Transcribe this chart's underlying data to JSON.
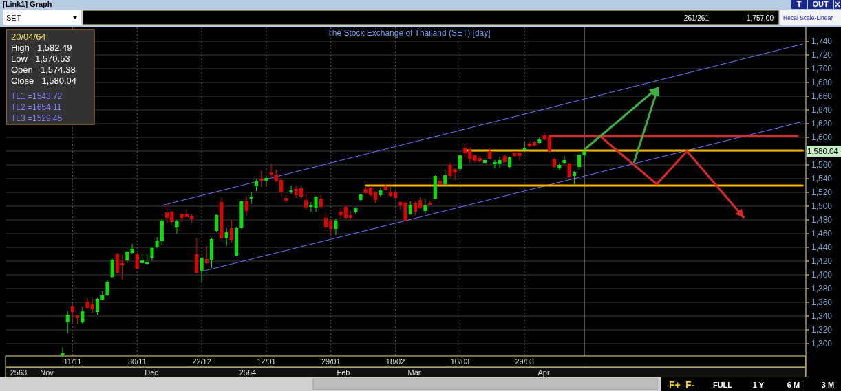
{
  "chart_data": {
    "type": "candlestick",
    "title": "The Stock Exchange of Thailand (SET) [day]",
    "categories": [
      null,
      null,
      null,
      null,
      null,
      null,
      null,
      null,
      null,
      null,
      null,
      null,
      null,
      "11/11",
      null,
      null,
      null,
      null,
      null,
      null,
      null,
      null,
      null,
      null,
      null,
      null,
      "30/11",
      null,
      null,
      null,
      null,
      null,
      null,
      null,
      null,
      null,
      null,
      null,
      null,
      "22/12",
      null,
      null,
      null,
      null,
      null,
      null,
      null,
      null,
      null,
      null,
      null,
      null,
      "12/01",
      null,
      null,
      null,
      null,
      null,
      null,
      null,
      null,
      null,
      null,
      null,
      null,
      "29/01",
      null,
      null,
      null,
      null,
      null,
      null,
      null,
      null,
      null,
      null,
      null,
      null,
      "18/02",
      null,
      null,
      null,
      null,
      null,
      null,
      null,
      null,
      null,
      null,
      null,
      null,
      "10/03",
      null,
      null,
      null,
      null,
      null,
      null,
      null,
      null,
      null,
      null,
      null,
      null,
      "29/03",
      null,
      null,
      null,
      null,
      null,
      null,
      null,
      null,
      null,
      null,
      null,
      null,
      null,
      null,
      null,
      null,
      null,
      null,
      null,
      null,
      null,
      null,
      null,
      null,
      null,
      null,
      null,
      null,
      null,
      null,
      null,
      null,
      null,
      null,
      null,
      null,
      null,
      null,
      null,
      null,
      null,
      null,
      null,
      null,
      null,
      null,
      null,
      null,
      null,
      null,
      null,
      null,
      null,
      null,
      null,
      null
    ],
    "ohlc": [
      null,
      null,
      null,
      null,
      null,
      null,
      null,
      null,
      null,
      null,
      null,
      [
        1283,
        1294,
        1282,
        1286
      ],
      [
        1331,
        1347,
        1315,
        1342
      ],
      [
        1354,
        1357,
        1332,
        1346
      ],
      [
        1341,
        1342,
        1328,
        1337
      ],
      [
        1331,
        1353,
        1328,
        1347
      ],
      [
        1361,
        1366,
        1351,
        1352
      ],
      [
        1357,
        1365,
        1345,
        1350
      ],
      [
        1346,
        1367,
        1342,
        1365
      ],
      [
        1364,
        1376,
        1363,
        1370
      ],
      [
        1370,
        1392,
        1369,
        1390
      ],
      [
        1397,
        1423,
        1396,
        1422
      ],
      [
        1430,
        1432,
        1402,
        1403
      ],
      [
        1417,
        1429,
        1393,
        1414
      ],
      [
        1421,
        1435,
        1417,
        1434
      ],
      [
        1432,
        1445,
        1430,
        1438
      ],
      [
        1430,
        1432,
        1408,
        1409
      ],
      [
        1417,
        1431,
        1416,
        1421
      ],
      [
        1416,
        1431,
        1415,
        1418
      ],
      [
        1425,
        1440,
        1421,
        1439
      ],
      [
        1440,
        1455,
        1439,
        1450
      ],
      [
        1449,
        1482,
        1443,
        1479
      ],
      [
        1491,
        1503,
        1475,
        1483
      ],
      [
        1492,
        1493,
        1473,
        1477
      ],
      [
        1469,
        1480,
        1460,
        1478
      ],
      [
        1488,
        1490,
        1477,
        1483
      ],
      [
        1488,
        1496,
        1484,
        1484
      ],
      [
        1486,
        1488,
        1476,
        1481
      ],
      [
        1430,
        1454,
        1402,
        1403
      ],
      [
        1406,
        1426,
        1389,
        1425
      ],
      [
        1423,
        1442,
        1416,
        1417
      ],
      [
        1421,
        1454,
        1410,
        1452
      ],
      [
        1464,
        1488,
        1462,
        1487
      ],
      [
        1506,
        1513,
        1452,
        1453
      ],
      [
        1453,
        1468,
        1442,
        1462
      ],
      [
        1468,
        1480,
        1447,
        1451
      ],
      [
        1428,
        1470,
        1427,
        1468
      ],
      [
        1468,
        1508,
        1467,
        1507
      ],
      [
        1507,
        1515,
        1486,
        1493
      ],
      [
        1511,
        1520,
        1503,
        1514
      ],
      [
        1529,
        1539,
        1522,
        1537
      ],
      [
        1540,
        1551,
        1528,
        1537
      ],
      [
        1537,
        1543,
        1529,
        1541
      ],
      [
        1549,
        1562,
        1543,
        1546
      ],
      [
        1546,
        1553,
        1535,
        1537
      ],
      [
        1538,
        1541,
        1514,
        1520
      ],
      [
        1512,
        1516,
        1504,
        1508
      ],
      [
        1520,
        1530,
        1518,
        1523
      ],
      [
        1525,
        1530,
        1512,
        1516
      ],
      [
        1526,
        1530,
        1511,
        1514
      ],
      [
        1509,
        1519,
        1495,
        1498
      ],
      [
        1499,
        1506,
        1492,
        1502
      ],
      [
        1498,
        1515,
        1492,
        1513
      ],
      [
        1511,
        1516,
        1498,
        1499
      ],
      [
        1483,
        1492,
        1467,
        1469
      ],
      [
        1479,
        1481,
        1456,
        1467
      ],
      [
        1467,
        1482,
        1458,
        1479
      ],
      [
        1492,
        1497,
        1481,
        1487
      ],
      [
        1499,
        1501,
        1482,
        1483
      ],
      [
        1487,
        1493,
        1479,
        1483
      ],
      [
        1492,
        1499,
        1489,
        1497
      ],
      [
        1509,
        1518,
        1508,
        1517
      ],
      [
        1525,
        1530,
        1517,
        1519
      ],
      [
        1527,
        1530,
        1514,
        1516
      ],
      [
        1521,
        1522,
        1504,
        1509
      ],
      [
        1516,
        1527,
        1514,
        1523
      ],
      [
        1528,
        1532,
        1523,
        1523
      ],
      [
        1520,
        1528,
        1514,
        1515
      ],
      [
        1520,
        1525,
        1511,
        1512
      ],
      [
        1506,
        1507,
        1494,
        1501
      ],
      [
        1505,
        1507,
        1478,
        1479
      ],
      [
        1488,
        1507,
        1487,
        1502
      ],
      [
        1504,
        1507,
        1486,
        1492
      ],
      [
        1509,
        1513,
        1496,
        1497
      ],
      [
        1493,
        1511,
        1488,
        1501
      ],
      [
        1504,
        1508,
        1501,
        1502
      ],
      [
        1511,
        1545,
        1510,
        1544
      ],
      [
        1537,
        1541,
        1530,
        1532
      ],
      [
        1532,
        1554,
        1531,
        1545
      ],
      [
        1560,
        1563,
        1541,
        1544
      ],
      [
        1554,
        1555,
        1538,
        1549
      ],
      [
        1554,
        1575,
        1551,
        1574
      ],
      [
        1585,
        1590,
        1571,
        1577
      ],
      [
        1581,
        1586,
        1563,
        1568
      ],
      [
        1574,
        1575,
        1564,
        1566
      ],
      [
        1570,
        1573,
        1563,
        1565
      ],
      [
        1563,
        1570,
        1560,
        1567
      ],
      [
        1580,
        1584,
        1568,
        1569
      ],
      [
        1561,
        1567,
        1555,
        1564
      ],
      [
        1562,
        1572,
        1556,
        1567
      ],
      [
        1573,
        1575,
        1563,
        1564
      ],
      [
        1557,
        1572,
        1556,
        1571
      ],
      [
        1577,
        1580,
        1572,
        1573
      ],
      [
        1578,
        1578,
        1567,
        1573
      ],
      [
        1582,
        1593,
        1581,
        1584
      ],
      [
        1591,
        1593,
        1586,
        1587
      ],
      [
        1593,
        1595,
        1587,
        1588
      ],
      [
        1592,
        1600,
        1591,
        1597
      ],
      [
        1603,
        1607,
        1596,
        1597
      ],
      [
        1600,
        1601,
        1577,
        1580
      ],
      [
        1568,
        1570,
        1556,
        1557
      ],
      [
        1555,
        1562,
        1553,
        1560
      ],
      [
        1563,
        1573,
        1562,
        1567
      ],
      [
        1562,
        1563,
        1541,
        1542
      ],
      [
        1544,
        1551,
        1530,
        1549
      ],
      [
        1557,
        1575,
        1553,
        1575
      ],
      [
        1574.38,
        1582.49,
        1570.53,
        1580.04
      ],
      null,
      null,
      null,
      null,
      null,
      null,
      null,
      null,
      null,
      null,
      null,
      null,
      null,
      null,
      null,
      null,
      null,
      null,
      null,
      null,
      null,
      null,
      null,
      null,
      null,
      null,
      null,
      null,
      null,
      null,
      null,
      null,
      null,
      null,
      null,
      null,
      null,
      null,
      null,
      null,
      null,
      null,
      null,
      null
    ],
    "series": [
      {
        "type": "line",
        "color": "#7070ff",
        "values": [
          null,
          null,
          null,
          null,
          null,
          null,
          null,
          null,
          null,
          null,
          null,
          null,
          null,
          null,
          null,
          null,
          null,
          null,
          null,
          null,
          null,
          null,
          null,
          null,
          null,
          null,
          null,
          null,
          null,
          null,
          null,
          1501,
          null,
          null,
          null,
          null,
          null,
          null,
          null,
          null,
          null,
          null,
          null,
          null,
          null,
          null,
          null,
          null,
          null,
          null,
          null,
          null,
          null,
          null,
          null,
          null,
          null,
          null,
          null,
          null,
          null,
          null,
          null,
          null,
          null,
          null,
          null,
          null,
          null,
          null,
          null,
          null,
          null,
          null,
          null,
          null,
          null,
          null,
          null,
          null,
          null,
          null,
          null,
          null,
          null,
          null,
          null,
          null,
          null,
          null,
          null,
          null,
          null,
          null,
          null,
          null,
          null,
          null,
          null,
          null,
          null,
          null,
          null,
          null,
          null,
          null,
          null,
          null,
          null,
          null,
          null,
          null,
          null,
          null,
          null,
          null,
          null,
          null,
          null,
          null,
          null,
          null,
          null,
          null,
          null,
          null,
          null,
          null,
          null,
          null,
          null,
          null,
          null,
          null,
          null,
          null,
          null,
          null,
          null,
          null,
          null,
          null,
          null,
          null,
          null,
          null,
          null,
          null,
          null,
          null,
          null,
          null,
          null,
          null,
          null,
          null,
          null,
          null,
          null,
          null,
          1736
        ]
      },
      {
        "type": "line",
        "color": "#7070ff",
        "values": [
          null,
          null,
          null,
          null,
          null,
          null,
          null,
          null,
          null,
          null,
          null,
          null,
          null,
          null,
          null,
          null,
          null,
          null,
          null,
          null,
          null,
          null,
          null,
          null,
          null,
          null,
          null,
          null,
          null,
          null,
          null,
          null,
          null,
          null,
          null,
          null,
          null,
          null,
          null,
          1405,
          null,
          null,
          null,
          null,
          null,
          null,
          null,
          null,
          null,
          null,
          null,
          null,
          null,
          null,
          null,
          null,
          null,
          null,
          null,
          null,
          null,
          null,
          null,
          null,
          null,
          null,
          null,
          null,
          null,
          null,
          null,
          null,
          null,
          null,
          null,
          null,
          null,
          null,
          null,
          null,
          null,
          null,
          null,
          null,
          null,
          null,
          null,
          null,
          null,
          null,
          null,
          null,
          null,
          null,
          null,
          null,
          null,
          null,
          null,
          null,
          null,
          null,
          null,
          null,
          null,
          null,
          null,
          null,
          null,
          null,
          null,
          null,
          null,
          null,
          null,
          null,
          null,
          null,
          null,
          null,
          null,
          null,
          null,
          null,
          null,
          null,
          null,
          null,
          null,
          null,
          null,
          null,
          null,
          null,
          null,
          null,
          null,
          null,
          null,
          null,
          null,
          null,
          null,
          null,
          null,
          null,
          null,
          null,
          null,
          null,
          null,
          null,
          null,
          null,
          null,
          null,
          null,
          null,
          null,
          null,
          1623
        ]
      },
      {
        "type": "line",
        "color": "#f5b400",
        "values": [
          null,
          null,
          null,
          null,
          null,
          null,
          null,
          null,
          null,
          null,
          null,
          null,
          null,
          null,
          null,
          null,
          null,
          null,
          null,
          null,
          null,
          null,
          null,
          null,
          null,
          null,
          null,
          null,
          null,
          null,
          null,
          null,
          null,
          null,
          null,
          null,
          null,
          null,
          null,
          null,
          null,
          null,
          null,
          null,
          null,
          null,
          null,
          null,
          null,
          null,
          null,
          null,
          null,
          null,
          null,
          null,
          null,
          null,
          null,
          null,
          null,
          null,
          null,
          null,
          null,
          null,
          null,
          null,
          null,
          null,
          null,
          null,
          null,
          null,
          null,
          null,
          null,
          null,
          null,
          null,
          null,
          null,
          null,
          null,
          null,
          null,
          null,
          null,
          null,
          null,
          null,
          null,
          1581,
          null,
          null,
          null,
          null,
          null,
          null,
          null,
          null,
          null,
          null,
          null,
          null,
          null,
          null,
          null,
          null,
          null,
          null,
          null,
          null,
          null,
          null,
          null,
          null,
          null,
          null,
          null,
          null,
          null,
          null,
          null,
          null,
          null,
          null,
          null,
          null,
          null,
          null,
          null,
          null,
          null,
          null,
          null,
          null,
          null,
          null,
          null,
          null,
          null,
          null,
          null,
          null,
          null,
          null,
          null,
          null,
          null,
          null,
          null,
          null,
          null,
          null,
          null,
          null,
          null,
          null,
          null,
          1581
        ]
      },
      {
        "type": "line",
        "color": "#f5b400",
        "values": [
          null,
          null,
          null,
          null,
          null,
          null,
          null,
          null,
          null,
          null,
          null,
          null,
          null,
          null,
          null,
          null,
          null,
          null,
          null,
          null,
          null,
          null,
          null,
          null,
          null,
          null,
          null,
          null,
          null,
          null,
          null,
          null,
          null,
          null,
          null,
          null,
          null,
          null,
          null,
          null,
          null,
          null,
          null,
          null,
          null,
          null,
          null,
          null,
          null,
          null,
          null,
          null,
          null,
          null,
          null,
          null,
          null,
          null,
          null,
          null,
          null,
          null,
          null,
          null,
          null,
          null,
          null,
          null,
          null,
          null,
          null,
          null,
          1530,
          null,
          null,
          null,
          null,
          null,
          null,
          null,
          null,
          null,
          null,
          null,
          null,
          null,
          null,
          null,
          null,
          null,
          null,
          null,
          null,
          null,
          null,
          null,
          null,
          null,
          null,
          null,
          null,
          null,
          null,
          null,
          null,
          null,
          null,
          null,
          null,
          null,
          null,
          null,
          null,
          null,
          null,
          null,
          null,
          null,
          null,
          null,
          null,
          null,
          null,
          null,
          null,
          null,
          null,
          null,
          null,
          null,
          null,
          null,
          null,
          null,
          null,
          null,
          null,
          null,
          null,
          null,
          null,
          null,
          null,
          null,
          null,
          null,
          null,
          null,
          null,
          null,
          null,
          null,
          null,
          null,
          null,
          null,
          null,
          null,
          null,
          null,
          1530
        ]
      },
      {
        "type": "line",
        "color": "#e02828",
        "values": [
          null,
          null,
          null,
          null,
          null,
          null,
          null,
          null,
          null,
          null,
          null,
          null,
          null,
          null,
          null,
          null,
          null,
          null,
          null,
          null,
          null,
          null,
          null,
          null,
          null,
          null,
          null,
          null,
          null,
          null,
          null,
          null,
          null,
          null,
          null,
          null,
          null,
          null,
          null,
          null,
          null,
          null,
          null,
          null,
          null,
          null,
          null,
          null,
          null,
          null,
          null,
          null,
          null,
          null,
          null,
          null,
          null,
          null,
          null,
          null,
          null,
          null,
          null,
          null,
          null,
          null,
          null,
          null,
          null,
          null,
          null,
          null,
          null,
          null,
          null,
          null,
          null,
          null,
          null,
          null,
          null,
          null,
          null,
          null,
          null,
          null,
          null,
          null,
          null,
          null,
          null,
          null,
          null,
          null,
          null,
          null,
          null,
          null,
          null,
          null,
          null,
          null,
          null,
          null,
          null,
          null,
          null,
          null,
          null,
          1602,
          null,
          null,
          null,
          null,
          null,
          null,
          null,
          null,
          null,
          null,
          null,
          null,
          null,
          null,
          null,
          null,
          null,
          null,
          null,
          null,
          null,
          null,
          null,
          null,
          null,
          null,
          null,
          null,
          null,
          null,
          null,
          null,
          null,
          null,
          null,
          null,
          null,
          null,
          null,
          null,
          null,
          null,
          null,
          null,
          null,
          null,
          null,
          null,
          null,
          1602,
          null
        ]
      }
    ],
    "ylim": [
      1282,
      1760
    ],
    "yticks": [
      {
        "value": 1300,
        "label": "1,300"
      },
      {
        "value": 1320,
        "label": "1,320"
      },
      {
        "value": 1340,
        "label": "1,340"
      },
      {
        "value": 1360,
        "label": "1,360"
      },
      {
        "value": 1380,
        "label": "1,380"
      },
      {
        "value": 1400,
        "label": "1,400"
      },
      {
        "value": 1420,
        "label": "1,420"
      },
      {
        "value": 1440,
        "label": "1,440"
      },
      {
        "value": 1460,
        "label": "1,460"
      },
      {
        "value": 1480,
        "label": "1,480"
      },
      {
        "value": 1500,
        "label": "1,500"
      },
      {
        "value": 1520,
        "label": "1,520"
      },
      {
        "value": 1540,
        "label": "1,540"
      },
      {
        "value": 1560,
        "label": "1,560"
      },
      {
        "value": 1580,
        "label": null
      },
      {
        "value": 1600,
        "label": "1,600"
      },
      {
        "value": 1620,
        "label": "1,620"
      },
      {
        "value": 1640,
        "label": "1,640"
      },
      {
        "value": 1660,
        "label": "1,660"
      },
      {
        "value": 1680,
        "label": "1,680"
      },
      {
        "value": 1700,
        "label": "1,700"
      },
      {
        "value": 1720,
        "label": "1,720"
      },
      {
        "value": 1740,
        "label": "1,740"
      }
    ],
    "grid": true,
    "annotations": [
      "[Link1] Graph",
      "SET",
      "261/261",
      "1,757.00",
      "Recal Scale-Linear",
      "T",
      "OUT",
      "20/04/64",
      "High =1,582.49",
      "Low =1,570.53",
      "Open =1,574.38",
      "Close =1,580.04",
      "TL1 =1543.72",
      "TL2 =1654.11",
      "TL3 =1529.45",
      "1,580.04",
      "F+",
      "F-",
      "FULL",
      "1 Y",
      "6 M",
      "3 M",
      "2563",
      "Nov",
      "Dec",
      "2564",
      "Feb",
      "Mar",
      "Apr"
    ]
  }
}
